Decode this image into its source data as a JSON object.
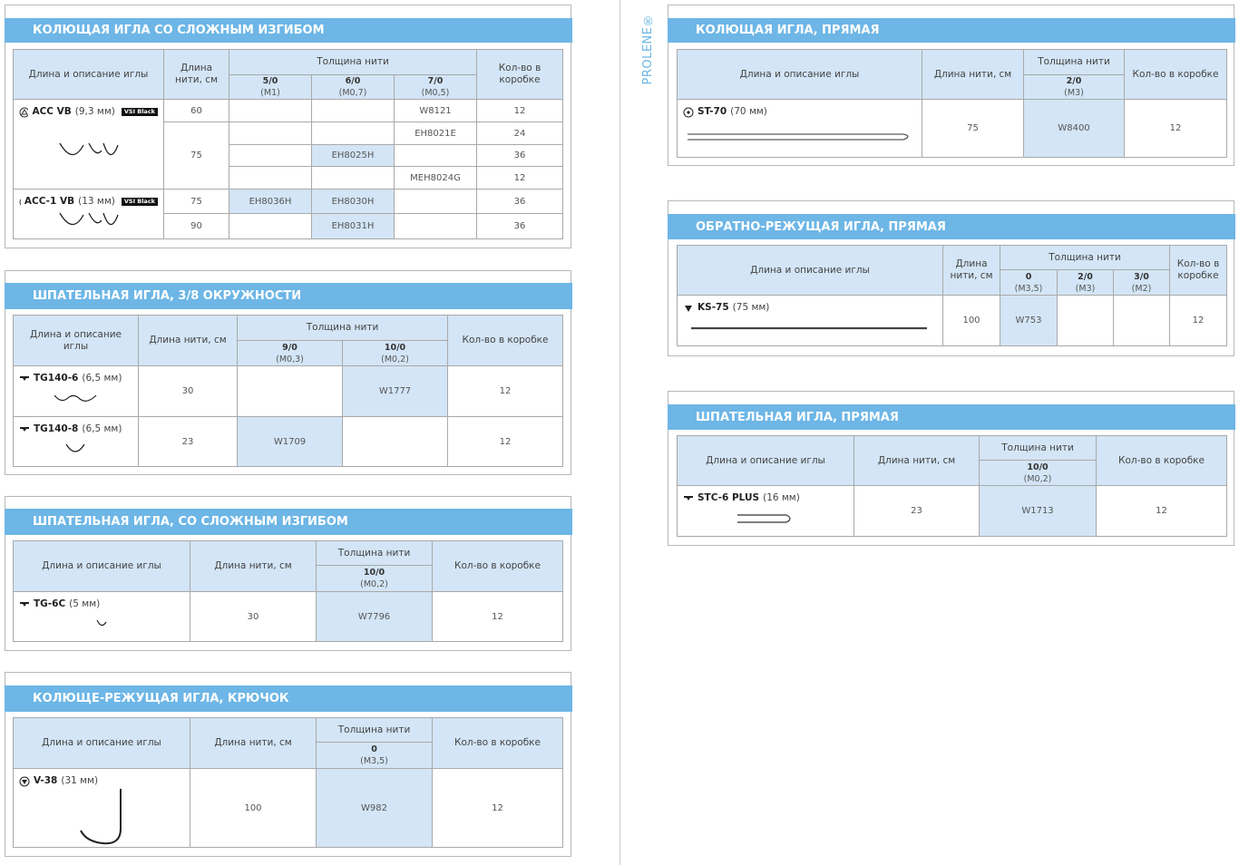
{
  "brand": "PROLENE®",
  "sections": [
    {
      "title": "КОЛЮЩАЯ ИГЛА СО СЛОЖНЫМ ИЗГИБОМ",
      "header": {
        "needle": "Длина и описание иглы",
        "length": "Длина нити, см",
        "gauge": "Толщина нити",
        "gauges": [
          {
            "size": "5/0",
            "metric": "(M1)"
          },
          {
            "size": "6/0",
            "metric": "(M0,7)"
          },
          {
            "size": "7/0",
            "metric": "(M0,5)"
          }
        ],
        "qty": "Кол-во в коробке"
      },
      "needles": [
        {
          "name": "ACC VB",
          "size": "(9,3 мм)",
          "badge": "VSI Black",
          "lengths": [
            {
              "length": 60,
              "rows": [
                {
                  "codes": [
                    null,
                    null,
                    {
                      "code": "W8121",
                      "highlight": false
                    }
                  ],
                  "qty": 12
                }
              ]
            },
            {
              "length": 75,
              "rows": [
                {
                  "codes": [
                    null,
                    null,
                    {
                      "code": "EH8021E",
                      "highlight": false
                    }
                  ],
                  "qty": 24
                },
                {
                  "codes": [
                    null,
                    {
                      "code": "EH8025H",
                      "highlight": true
                    },
                    null
                  ],
                  "qty": 36
                },
                {
                  "codes": [
                    null,
                    null,
                    {
                      "code": "MEH8024G",
                      "highlight": false
                    }
                  ],
                  "qty": 12
                }
              ]
            }
          ]
        },
        {
          "name": "ACC-1 VB",
          "size": "(13 мм)",
          "badge": "VSI Black",
          "lengths": [
            {
              "length": 75,
              "rows": [
                {
                  "codes": [
                    {
                      "code": "EH8036H",
                      "highlight": true
                    },
                    {
                      "code": "EH8030H",
                      "highlight": true
                    },
                    null
                  ],
                  "qty": 36
                }
              ]
            },
            {
              "length": 90,
              "rows": [
                {
                  "codes": [
                    null,
                    {
                      "code": "EH8031H",
                      "highlight": true
                    },
                    null
                  ],
                  "qty": 36
                }
              ]
            }
          ]
        }
      ]
    },
    {
      "title": "ШПАТЕЛЬНАЯ ИГЛА, 3/8 ОКРУЖНОСТИ",
      "header": {
        "needle": "Длина и описание иглы",
        "length": "Длина нити, см",
        "gauge": "Толщина нити",
        "gauges": [
          {
            "size": "9/0",
            "metric": "(M0,3)"
          },
          {
            "size": "10/0",
            "metric": "(M0,2)"
          }
        ],
        "qty": "Кол-во в коробке"
      },
      "needles": [
        {
          "name": "TG140-6",
          "size": "(6,5 мм)",
          "lengths": [
            {
              "length": 30,
              "rows": [
                {
                  "codes": [
                    null,
                    {
                      "code": "W1777",
                      "highlight": true
                    }
                  ],
                  "qty": 12
                }
              ]
            }
          ]
        },
        {
          "name": "TG140-8",
          "size": "(6,5 мм)",
          "lengths": [
            {
              "length": 23,
              "rows": [
                {
                  "codes": [
                    {
                      "code": "W1709",
                      "highlight": true
                    },
                    null
                  ],
                  "qty": 12
                }
              ]
            }
          ]
        }
      ]
    },
    {
      "title": "ШПАТЕЛЬНАЯ ИГЛА, СО СЛОЖНЫМ ИЗГИБОМ",
      "header": {
        "needle": "Длина и описание иглы",
        "length": "Длина нити, см",
        "gauge": "Толщина нити",
        "gauges": [
          {
            "size": "10/0",
            "metric": "(M0,2)"
          }
        ],
        "qty": "Кол-во в коробке"
      },
      "needles": [
        {
          "name": "TG-6C",
          "size": "(5 мм)",
          "lengths": [
            {
              "length": 30,
              "rows": [
                {
                  "codes": [
                    {
                      "code": "W7796",
                      "highlight": true
                    }
                  ],
                  "qty": 12
                }
              ]
            }
          ]
        }
      ]
    },
    {
      "title": "КОЛЮЩЕ-РЕЖУЩАЯ ИГЛА, КРЮЧОК",
      "header": {
        "needle": "Длина и описание иглы",
        "length": "Длина нити, см",
        "gauge": "Толщина нити",
        "gauges": [
          {
            "size": "0",
            "metric": "(M3,5)"
          }
        ],
        "qty": "Кол-во в коробке"
      },
      "needles": [
        {
          "name": "V-38",
          "size": "(31 мм)",
          "lengths": [
            {
              "length": 100,
              "rows": [
                {
                  "codes": [
                    {
                      "code": "W982",
                      "highlight": true
                    }
                  ],
                  "qty": 12
                }
              ]
            }
          ]
        }
      ]
    },
    {
      "title": "КОЛЮЩАЯ ИГЛА, ПРЯМАЯ",
      "header": {
        "needle": "Длина и описание иглы",
        "length": "Длина нити, см",
        "gauge": "Толщина нити",
        "gauges": [
          {
            "size": "2/0",
            "metric": "(M3)"
          }
        ],
        "qty": "Кол-во в коробке"
      },
      "needles": [
        {
          "name": "ST-70",
          "size": "(70 мм)",
          "lengths": [
            {
              "length": 75,
              "rows": [
                {
                  "codes": [
                    {
                      "code": "W8400",
                      "highlight": true
                    }
                  ],
                  "qty": 12
                }
              ]
            }
          ]
        }
      ]
    },
    {
      "title": "ОБРАТНО-РЕЖУЩАЯ ИГЛА, ПРЯМАЯ",
      "header": {
        "needle": "Длина и описание иглы",
        "length": "Длина нити, см",
        "gauge": "Толщина нити",
        "gauges": [
          {
            "size": "0",
            "metric": "(M3,5)"
          },
          {
            "size": "2/0",
            "metric": "(M3)"
          },
          {
            "size": "3/0",
            "metric": "(M2)"
          }
        ],
        "qty": "Кол-во в коробке"
      },
      "needles": [
        {
          "name": "KS-75",
          "size": "(75 мм)",
          "lengths": [
            {
              "length": 100,
              "rows": [
                {
                  "codes": [
                    {
                      "code": "W753",
                      "highlight": true
                    },
                    null,
                    null
                  ],
                  "qty": 12
                }
              ]
            }
          ]
        }
      ]
    },
    {
      "title": "ШПАТЕЛЬНАЯ ИГЛА, ПРЯМАЯ",
      "header": {
        "needle": "Длина и описание иглы",
        "length": "Длина нити, см",
        "gauge": "Толщина нити",
        "gauges": [
          {
            "size": "10/0",
            "metric": "(M0,2)"
          }
        ],
        "qty": "Кол-во в коробке"
      },
      "needles": [
        {
          "name": "STC-6 PLUS",
          "size": "(16 мм)",
          "lengths": [
            {
              "length": 23,
              "rows": [
                {
                  "codes": [
                    {
                      "code": "W1713",
                      "highlight": true
                    }
                  ],
                  "qty": 12
                }
              ]
            }
          ]
        }
      ]
    }
  ]
}
